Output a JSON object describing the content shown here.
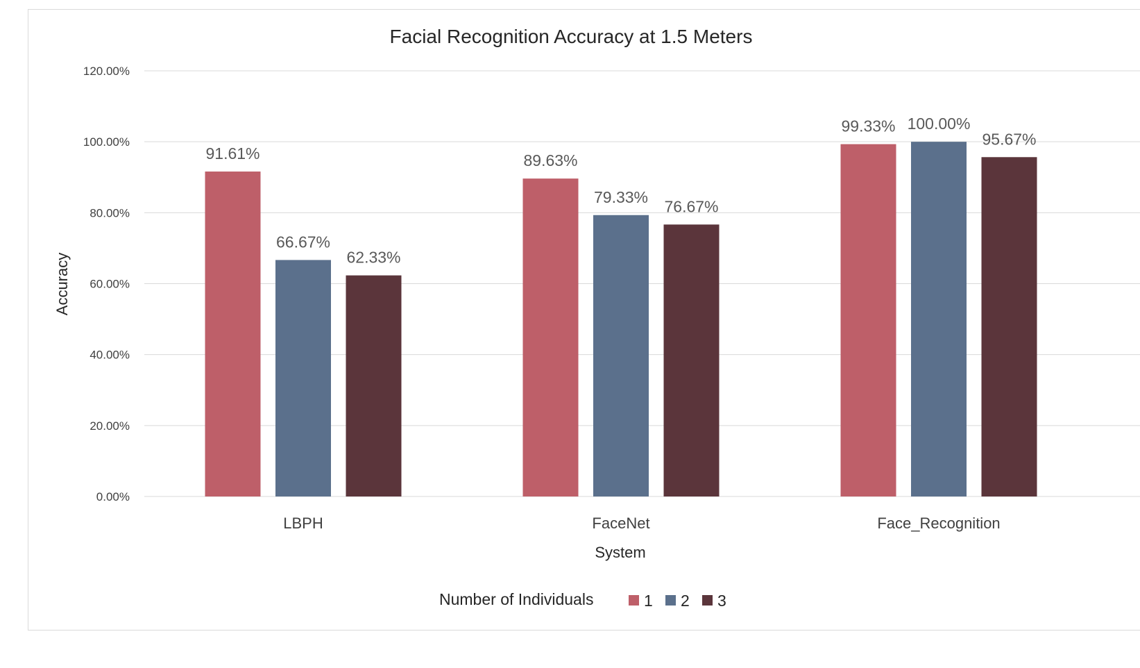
{
  "chart_data": {
    "type": "bar",
    "title": "Facial Recognition Accuracy at 1.5 Meters",
    "xlabel": "System",
    "ylabel": "Accuracy",
    "categories": [
      "LBPH",
      "FaceNet",
      "Face_Recognition"
    ],
    "series": [
      {
        "name": "1",
        "color": "#be5f69",
        "values": [
          91.61,
          89.63,
          99.33
        ],
        "labels": [
          "91.61%",
          "89.63%",
          "99.33%"
        ]
      },
      {
        "name": "2",
        "color": "#5b708c",
        "values": [
          66.67,
          79.33,
          100.0
        ],
        "labels": [
          "66.67%",
          "79.33%",
          "100.00%"
        ]
      },
      {
        "name": "3",
        "color": "#5b353b",
        "values": [
          62.33,
          76.67,
          95.67
        ],
        "labels": [
          "62.33%",
          "76.67%",
          "95.67%"
        ]
      }
    ],
    "ylim": [
      0,
      120
    ],
    "yticks": [
      "0.00%",
      "20.00%",
      "40.00%",
      "60.00%",
      "80.00%",
      "100.00%",
      "120.00%"
    ],
    "legend": {
      "title": "Number of Individuals",
      "position": "bottom"
    },
    "grid": true
  }
}
